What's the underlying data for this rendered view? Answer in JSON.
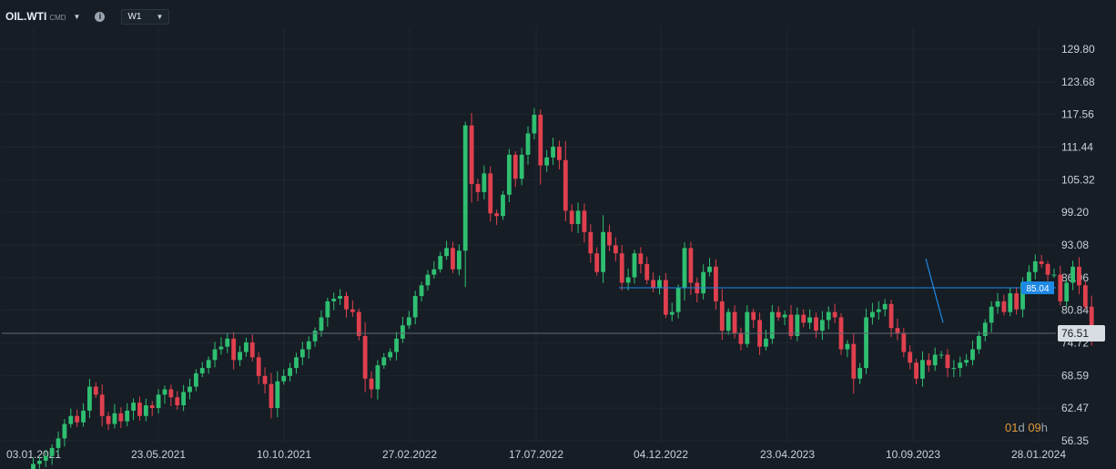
{
  "toolbar": {
    "symbol": "OIL.WTI",
    "symbol_type": "CMD",
    "timeframe": "W1",
    "info_icon": "info-icon"
  },
  "countdown": {
    "d": "01",
    "d_unit": "d",
    "h": "09",
    "h_unit": "h"
  },
  "colors": {
    "background": "#161d25",
    "up": "#2fbf71",
    "down": "#e0404e",
    "grid": "#1e2630",
    "hline": "#1e88e5",
    "trendline": "#1e88e5",
    "current_price": "#5f6b78"
  },
  "chart_data": {
    "type": "candlestick",
    "title": "",
    "y_ticks": [
      "129.80",
      "123.68",
      "117.56",
      "111.44",
      "105.32",
      "99.20",
      "93.08",
      "86.96",
      "80.84",
      "74.72",
      "68.59",
      "62.47",
      "56.35"
    ],
    "ylim": [
      56.35,
      129.8
    ],
    "x_ticks": [
      "03.01.2021",
      "23.05.2021",
      "10.10.2021",
      "27.02.2022",
      "17.07.2022",
      "04.12.2022",
      "23.04.2023",
      "10.09.2023",
      "28.01.2024"
    ],
    "xlim": [
      "03.01.2021",
      "28.01.2024"
    ],
    "horizontal_line": {
      "label": "85.04",
      "value": 85.04,
      "from": "2022-11"
    },
    "current_price": {
      "label": "76.51",
      "value": 76.51
    },
    "trendline": {
      "from": [
        "2023-11",
        90.5
      ],
      "to": [
        "2024-01",
        78.5
      ]
    },
    "closes": [
      52.0,
      52.6,
      53.5,
      55.0,
      56.8,
      59.5,
      61.0,
      59.8,
      62.0,
      66.5,
      65.0,
      61.0,
      59.5,
      61.5,
      60.0,
      62.0,
      63.5,
      61.0,
      63.0,
      62.5,
      65.0,
      66.0,
      64.5,
      63.0,
      65.5,
      66.5,
      69.0,
      70.0,
      71.5,
      73.5,
      74.0,
      75.5,
      71.5,
      73.0,
      74.8,
      72.0,
      68.5,
      67.0,
      62.5,
      67.5,
      68.5,
      70.0,
      72.0,
      73.5,
      75.0,
      77.0,
      79.5,
      82.5,
      83.0,
      83.5,
      81.0,
      80.5,
      76.0,
      68.0,
      66.0,
      70.5,
      72.0,
      73.0,
      75.5,
      78.0,
      79.5,
      83.5,
      85.5,
      87.5,
      88.5,
      91.0,
      92.5,
      88.5,
      92.0,
      115.5,
      104.5,
      103.0,
      106.5,
      99.0,
      98.5,
      102.5,
      110.0,
      105.5,
      110.0,
      114.0,
      117.5,
      108.0,
      109.5,
      111.5,
      109.0,
      99.5,
      97.0,
      99.5,
      95.5,
      91.5,
      88.0,
      95.5,
      93.0,
      91.5,
      86.0,
      87.0,
      91.5,
      89.5,
      86.5,
      85.0,
      86.5,
      80.0,
      80.5,
      85.0,
      92.5,
      86.0,
      84.0,
      88.0,
      89.0,
      82.5,
      77.0,
      80.5,
      76.5,
      74.5,
      80.5,
      79.0,
      74.0,
      75.5,
      80.5,
      79.5,
      80.0,
      76.0,
      80.0,
      78.5,
      79.5,
      77.0,
      79.0,
      80.5,
      79.5,
      73.5,
      74.5,
      68.0,
      70.0,
      79.5,
      80.5,
      81.0,
      82.0,
      77.5,
      76.5,
      73.0,
      71.0,
      68.0,
      71.5,
      70.5,
      72.5,
      72.5,
      70.0,
      70.0,
      71.0,
      71.5,
      73.5,
      76.0,
      78.5,
      81.5,
      82.5,
      80.5,
      84.0,
      81.0,
      86.0,
      88.0,
      90.0,
      89.5,
      87.5,
      87.5,
      82.5,
      86.0,
      89.0,
      85.5,
      81.5,
      76.51
    ]
  }
}
